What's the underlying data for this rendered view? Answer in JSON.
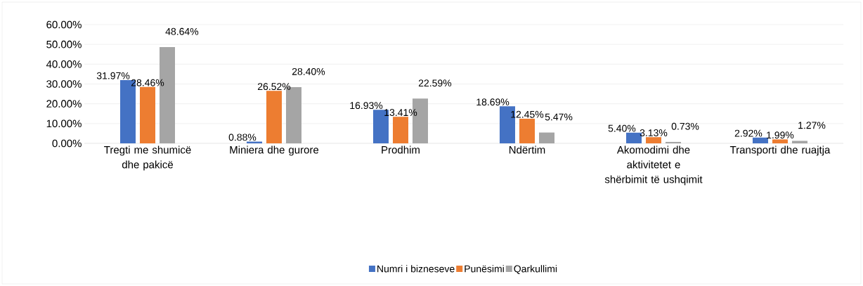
{
  "chart_data": {
    "type": "bar",
    "categories": [
      "Tregti me shumicë dhe pakicë",
      "Miniera dhe gurore",
      "Prodhim",
      "Ndërtim",
      "Akomodimi dhe aktivitetet e shërbimit të ushqimit",
      "Transporti dhe ruajtja"
    ],
    "series": [
      {
        "name": "Numri i bizneseve",
        "color": "#4472c4",
        "values": [
          31.97,
          0.88,
          16.93,
          18.69,
          5.4,
          2.92
        ],
        "value_labels": [
          "31.97%",
          "0.88%",
          "16.93%",
          "18.69%",
          "5.40%",
          "2.92%"
        ]
      },
      {
        "name": "Punësimi",
        "color": "#ed7d31",
        "values": [
          28.46,
          26.52,
          13.41,
          12.45,
          3.13,
          1.99
        ],
        "value_labels": [
          "28.46%",
          "26.52%",
          "13.41%",
          "12.45%",
          "3.13%",
          "1.99%"
        ]
      },
      {
        "name": "Qarkullimi",
        "color": "#a5a5a5",
        "values": [
          48.64,
          28.4,
          22.59,
          5.47,
          0.73,
          1.27
        ],
        "value_labels": [
          "48.64%",
          "28.40%",
          "22.59%",
          "5.47%",
          "0.73%",
          "1.27%"
        ]
      }
    ],
    "ylim": [
      0,
      60
    ],
    "yticks": [
      {
        "value": 0,
        "label": "0.00%"
      },
      {
        "value": 10,
        "label": "10.00%"
      },
      {
        "value": 20,
        "label": "20.00%"
      },
      {
        "value": 30,
        "label": "30.00%"
      },
      {
        "value": 40,
        "label": "40.00%"
      },
      {
        "value": 50,
        "label": "50.00%"
      },
      {
        "value": 60,
        "label": "60.00%"
      }
    ],
    "grid": "y",
    "legend": "bottom"
  }
}
